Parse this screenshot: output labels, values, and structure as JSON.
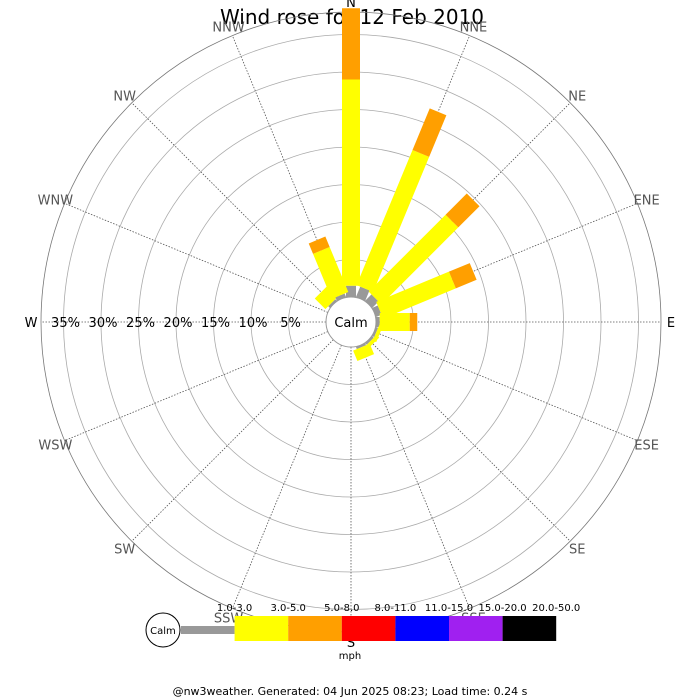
{
  "chart_data": {
    "type": "wind-rose",
    "title": "Wind rose for 12 Feb 2010",
    "directions": [
      "N",
      "NNE",
      "NE",
      "ENE",
      "E",
      "ESE",
      "SE",
      "SSE",
      "S",
      "SSW",
      "SW",
      "WSW",
      "W",
      "WNW",
      "NW",
      "NNW"
    ],
    "ring_labels": [
      "5%",
      "10%",
      "15%",
      "20%",
      "25%",
      "30%",
      "35%"
    ],
    "rings_percent": [
      5,
      10,
      15,
      20,
      25,
      30,
      35
    ],
    "max_percent": 38,
    "calm_label": "Calm",
    "speed_bins": [
      {
        "label": "1.0-3.0",
        "color": "#999999"
      },
      {
        "label": "3.0-5.0",
        "color": "#ffff00"
      },
      {
        "label": "5.0-8.0",
        "color": "#ff9f00"
      },
      {
        "label": "8.0-11.0",
        "color": "#ff0000"
      },
      {
        "label": "11.0-15.0",
        "color": "#0000ff"
      },
      {
        "label": "15.0-20.0",
        "color": "#a020f0"
      },
      {
        "label": "20.0-50.0",
        "color": "#000000"
      }
    ],
    "unit": "mph",
    "series": [
      {
        "dir": "N",
        "values": [
          1.5,
          27.5,
          9.5,
          0,
          0,
          0,
          0
        ]
      },
      {
        "dir": "NNE",
        "values": [
          1.5,
          19.5,
          6.0,
          0,
          0,
          0,
          0
        ]
      },
      {
        "dir": "NE",
        "values": [
          1.2,
          14.5,
          4.0,
          0,
          0,
          0,
          0
        ]
      },
      {
        "dir": "ENE",
        "values": [
          0.8,
          10.5,
          3.0,
          0,
          0,
          0,
          0
        ]
      },
      {
        "dir": "E",
        "values": [
          0.5,
          4.0,
          1.0,
          0,
          0,
          0,
          0
        ]
      },
      {
        "dir": "ESE",
        "values": [
          0.3,
          0.5,
          0,
          0,
          0,
          0,
          0
        ]
      },
      {
        "dir": "SE",
        "values": [
          0.3,
          0.5,
          0,
          0,
          0,
          0,
          0
        ]
      },
      {
        "dir": "SSE",
        "values": [
          0.3,
          1.5,
          0,
          0,
          0,
          0,
          0
        ]
      },
      {
        "dir": "S",
        "values": [
          0,
          0,
          0,
          0,
          0,
          0,
          0
        ]
      },
      {
        "dir": "SSW",
        "values": [
          0,
          0,
          0,
          0,
          0,
          0,
          0
        ]
      },
      {
        "dir": "SW",
        "values": [
          0,
          0,
          0,
          0,
          0,
          0,
          0
        ]
      },
      {
        "dir": "WSW",
        "values": [
          0,
          0,
          0,
          0,
          0,
          0,
          0
        ]
      },
      {
        "dir": "W",
        "values": [
          0,
          0,
          0,
          0,
          0,
          0,
          0
        ]
      },
      {
        "dir": "WNW",
        "values": [
          0,
          0,
          0,
          0,
          0,
          0,
          0
        ]
      },
      {
        "dir": "NW",
        "values": [
          0.3,
          2.0,
          0,
          0,
          0,
          0,
          0
        ]
      },
      {
        "dir": "NNW",
        "values": [
          0.5,
          6.5,
          1.5,
          0,
          0,
          0,
          0
        ]
      }
    ],
    "grid": true,
    "legend_position": "bottom"
  },
  "footer": "@nw3weather. Generated: 04 Jun 2025 08:23; Load time: 0.24 s"
}
